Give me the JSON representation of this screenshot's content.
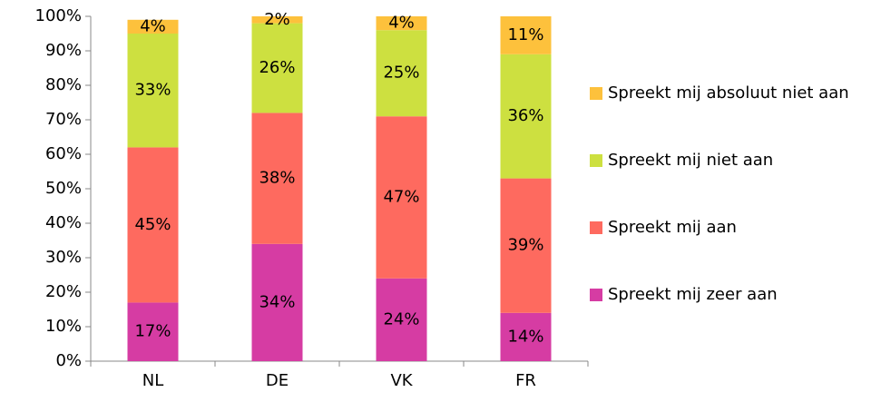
{
  "chart_data": {
    "type": "stacked_bar",
    "categories": [
      "NL",
      "DE",
      "VK",
      "FR"
    ],
    "series": [
      {
        "name": "Spreekt mij zeer aan",
        "color": "#d63ca3",
        "values": [
          17,
          34,
          24,
          14
        ],
        "value_labels": [
          "17%",
          "34%",
          "24%",
          "14%"
        ]
      },
      {
        "name": "Spreekt mij aan",
        "color": "#fe6a5f",
        "values": [
          45,
          38,
          47,
          39
        ],
        "value_labels": [
          "45%",
          "38%",
          "47%",
          "39%"
        ]
      },
      {
        "name": "Spreekt mij niet aan",
        "color": "#cde040",
        "values": [
          33,
          26,
          25,
          36
        ],
        "value_labels": [
          "33%",
          "26%",
          "25%",
          "36%"
        ]
      },
      {
        "name": "Spreekt mij absoluut niet aan",
        "color": "#fdc13c",
        "values": [
          4,
          2,
          4,
          11
        ],
        "value_labels": [
          "4%",
          "2%",
          "4%",
          "11%"
        ]
      }
    ],
    "ylim": [
      0,
      100
    ],
    "yticks": [
      {
        "value": 0,
        "label": "0%"
      },
      {
        "value": 10,
        "label": "10%"
      },
      {
        "value": 20,
        "label": "20%"
      },
      {
        "value": 30,
        "label": "30%"
      },
      {
        "value": 40,
        "label": "40%"
      },
      {
        "value": 50,
        "label": "50%"
      },
      {
        "value": 60,
        "label": "60%"
      },
      {
        "value": 70,
        "label": "70%"
      },
      {
        "value": 80,
        "label": "80%"
      },
      {
        "value": 90,
        "label": "90%"
      },
      {
        "value": 100,
        "label": "100%"
      }
    ],
    "legend": "right"
  }
}
